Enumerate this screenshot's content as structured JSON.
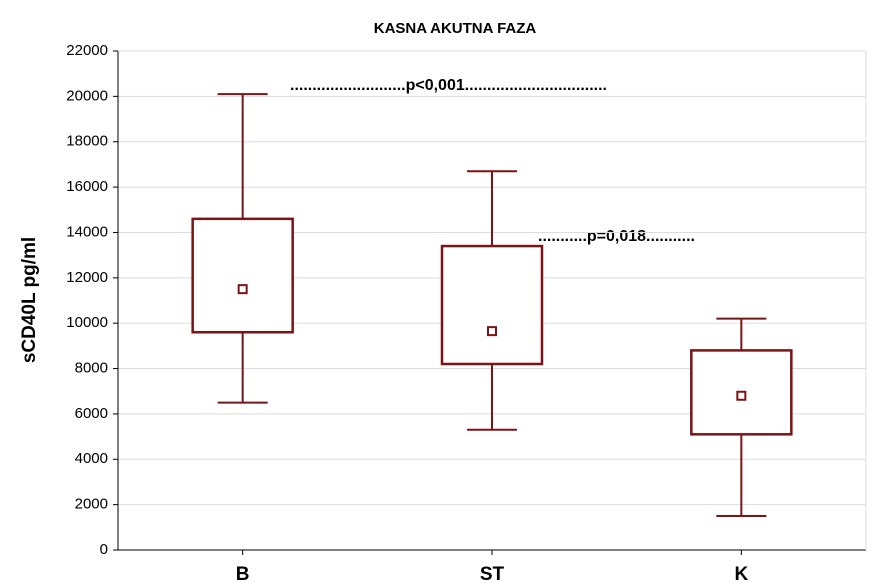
{
  "chart_data": {
    "type": "box",
    "title": "KASNA AKUTNA FAZA",
    "y_label": "sCD40L pg/ml",
    "categories": [
      "B",
      "ST",
      "K"
    ],
    "min": [
      6500,
      5300,
      1500
    ],
    "q1": [
      9600,
      8200,
      5100
    ],
    "center": [
      11500,
      9650,
      6800
    ],
    "q3": [
      14600,
      13400,
      8800
    ],
    "max": [
      20100,
      16700,
      10200
    ],
    "color": "#7b1416",
    "ylim": [
      0,
      22000
    ],
    "yticks": [
      0,
      2000,
      4000,
      6000,
      8000,
      10000,
      12000,
      14000,
      16000,
      18000,
      20000,
      22000
    ],
    "grid": true,
    "annotations": [
      "..........................p<0,001................................",
      "...........p=0,018..........."
    ]
  }
}
